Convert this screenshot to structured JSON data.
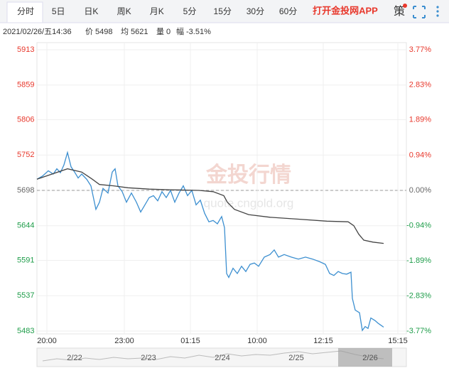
{
  "tabs": [
    "分时",
    "5日",
    "日K",
    "周K",
    "月K",
    "5分",
    "15分",
    "30分",
    "60分"
  ],
  "app_link": "打开金投网APP",
  "strategy_icon": "策",
  "info": {
    "datetime": "2021/02/26/五14:36",
    "price_label": "价",
    "price": "5498",
    "avg_label": "均",
    "avg": "5621",
    "volume_label": "量",
    "volume": "0",
    "change_label": "幅",
    "change": "-3.51%"
  },
  "watermark": {
    "brand": "金投行情",
    "url": "quote.cngold.org"
  },
  "chart_data": {
    "type": "line",
    "ylim": [
      5483,
      5913
    ],
    "yticks": [
      5913,
      5859,
      5806,
      5752,
      5698,
      5644,
      5591,
      5537,
      5483
    ],
    "y2lim": [
      -3.77,
      3.77
    ],
    "y2ticks": [
      {
        "value": 3.77,
        "label": "3.77%"
      },
      {
        "value": 2.83,
        "label": "2.83%"
      },
      {
        "value": 1.89,
        "label": "1.89%"
      },
      {
        "value": 0.94,
        "label": "0.94%"
      },
      {
        "value": 0,
        "label": "0.00%"
      },
      {
        "value": -0.94,
        "label": "-0.94%"
      },
      {
        "value": -1.89,
        "label": "-1.89%"
      },
      {
        "value": -2.83,
        "label": "-2.83%"
      },
      {
        "value": -3.77,
        "label": "-3.77%"
      }
    ],
    "xlim": [
      0,
      520
    ],
    "xticks": [
      {
        "value": 14,
        "label": "20:00"
      },
      {
        "value": 123,
        "label": "23:00"
      },
      {
        "value": 216,
        "label": "01:15"
      },
      {
        "value": 310,
        "label": "10:00"
      },
      {
        "value": 403,
        "label": "12:15"
      },
      {
        "value": 508,
        "label": "15:15"
      }
    ],
    "up_color": "#e8382c",
    "down_color": "#1f9d4a",
    "flat_color": "#666666",
    "series": [
      {
        "color": "#3c8fd0",
        "x": [
          0,
          8,
          16,
          23,
          28,
          33,
          38,
          43,
          48,
          53,
          58,
          63,
          70,
          76,
          83,
          88,
          93,
          100,
          106,
          110,
          114,
          120,
          126,
          133,
          140,
          146,
          151,
          158,
          164,
          170,
          176,
          182,
          188,
          194,
          200,
          206,
          212,
          218,
          224,
          230,
          236,
          242,
          248,
          254,
          260,
          264,
          267,
          270,
          276,
          282,
          288,
          294,
          300,
          306,
          312,
          320,
          328,
          334,
          340,
          348,
          358,
          368,
          378,
          388,
          398,
          406,
          412,
          418,
          424,
          430,
          436,
          442,
          444,
          448,
          454,
          458,
          462,
          466,
          470,
          476,
          480,
          484,
          488
        ],
        "values": [
          5715,
          5720,
          5728,
          5723,
          5731,
          5725,
          5737,
          5756,
          5734,
          5726,
          5717,
          5723,
          5715,
          5705,
          5669,
          5680,
          5701,
          5694,
          5726,
          5731,
          5705,
          5696,
          5680,
          5694,
          5680,
          5665,
          5674,
          5687,
          5690,
          5682,
          5696,
          5687,
          5698,
          5680,
          5694,
          5705,
          5690,
          5698,
          5676,
          5683,
          5663,
          5650,
          5652,
          5647,
          5658,
          5641,
          5571,
          5565,
          5579,
          5571,
          5582,
          5574,
          5585,
          5587,
          5582,
          5596,
          5600,
          5607,
          5596,
          5600,
          5596,
          5593,
          5596,
          5593,
          5589,
          5585,
          5571,
          5568,
          5574,
          5571,
          5570,
          5573,
          5533,
          5515,
          5511,
          5484,
          5490,
          5487,
          5503,
          5499,
          5495,
          5492,
          5489
        ]
      },
      {
        "color": "#444444",
        "x": [
          0,
          43,
          63,
          78,
          88,
          108,
          128,
          158,
          188,
          228,
          248,
          263,
          268,
          278,
          298,
          328,
          368,
          408,
          438,
          446,
          453,
          460,
          473,
          488
        ],
        "values": [
          5715,
          5731,
          5726,
          5715,
          5707,
          5705,
          5702,
          5700,
          5699,
          5698,
          5696,
          5690,
          5680,
          5669,
          5661,
          5657,
          5654,
          5651,
          5650,
          5644,
          5631,
          5622,
          5619,
          5617
        ]
      }
    ]
  },
  "navigator": {
    "dates": [
      "2/22",
      "2/23",
      "2/24",
      "2/25",
      "2/26"
    ]
  }
}
